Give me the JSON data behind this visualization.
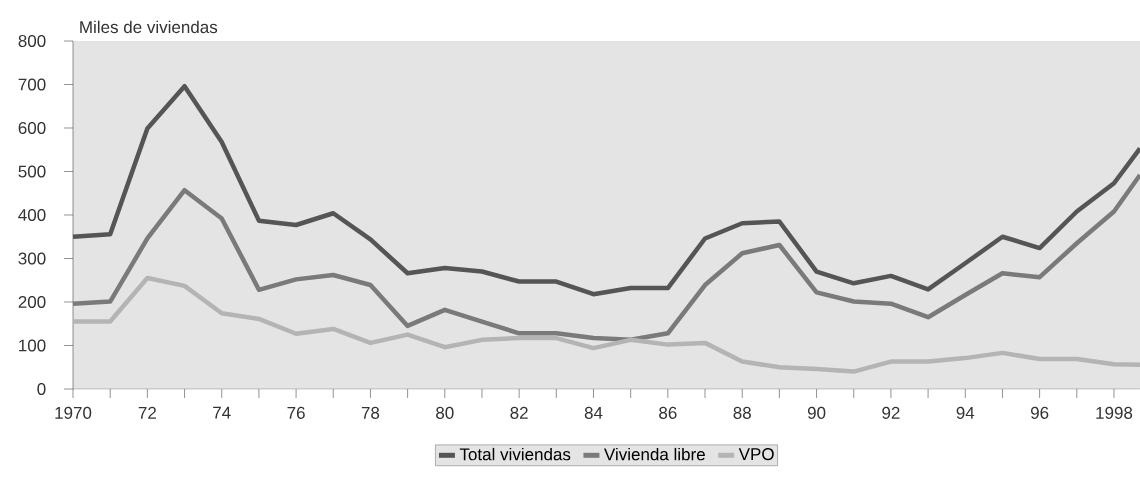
{
  "chart_data": {
    "type": "line",
    "ylabel": "Miles de viviendas",
    "x": [
      1970,
      1971,
      1972,
      1973,
      1974,
      1975,
      1976,
      1977,
      1978,
      1979,
      1980,
      1981,
      1982,
      1983,
      1984,
      1985,
      1986,
      1987,
      1988,
      1989,
      1990,
      1991,
      1992,
      1993,
      1994,
      1995,
      1996,
      1997,
      1998,
      1998.7
    ],
    "series": [
      {
        "name": "Total viviendas",
        "color": "#555555",
        "values": [
          350,
          356,
          599,
          696,
          568,
          387,
          377,
          404,
          344,
          266,
          278,
          270,
          247,
          247,
          218,
          232,
          232,
          346,
          381,
          385,
          270,
          243,
          260,
          229,
          289,
          350,
          324,
          408,
          473,
          553
        ]
      },
      {
        "name": "Vivienda libre",
        "color": "#7a7a7a",
        "values": [
          196,
          201,
          346,
          457,
          392,
          228,
          252,
          262,
          239,
          145,
          182,
          155,
          128,
          128,
          117,
          113,
          128,
          239,
          312,
          331,
          222,
          201,
          196,
          165,
          216,
          266,
          257,
          335,
          408,
          492
        ]
      },
      {
        "name": "VPO",
        "color": "#b4b4b4",
        "values": [
          155,
          155,
          255,
          237,
          174,
          161,
          127,
          138,
          106,
          125,
          96,
          113,
          117,
          117,
          94,
          113,
          102,
          106,
          63,
          50,
          46,
          40,
          63,
          63,
          71,
          83,
          69,
          69,
          57,
          56
        ]
      }
    ],
    "xlim": [
      1970,
      1998.7
    ],
    "xticks": [
      {
        "value": 1970,
        "label": "1970"
      },
      {
        "value": 1971,
        "label": null
      },
      {
        "value": 1972,
        "label": "72"
      },
      {
        "value": 1973,
        "label": null
      },
      {
        "value": 1974,
        "label": "74"
      },
      {
        "value": 1975,
        "label": null
      },
      {
        "value": 1976,
        "label": "76"
      },
      {
        "value": 1977,
        "label": null
      },
      {
        "value": 1978,
        "label": "78"
      },
      {
        "value": 1979,
        "label": null
      },
      {
        "value": 1980,
        "label": "80"
      },
      {
        "value": 1981,
        "label": null
      },
      {
        "value": 1982,
        "label": "82"
      },
      {
        "value": 1983,
        "label": null
      },
      {
        "value": 1984,
        "label": "84"
      },
      {
        "value": 1985,
        "label": null
      },
      {
        "value": 1986,
        "label": "86"
      },
      {
        "value": 1987,
        "label": null
      },
      {
        "value": 1988,
        "label": "88"
      },
      {
        "value": 1989,
        "label": null
      },
      {
        "value": 1990,
        "label": "90"
      },
      {
        "value": 1991,
        "label": null
      },
      {
        "value": 1992,
        "label": "92"
      },
      {
        "value": 1993,
        "label": null
      },
      {
        "value": 1994,
        "label": "94"
      },
      {
        "value": 1995,
        "label": null
      },
      {
        "value": 1996,
        "label": "96"
      },
      {
        "value": 1997,
        "label": null
      },
      {
        "value": 1998,
        "label": "1998"
      }
    ],
    "ylim": [
      0,
      800
    ],
    "yticks": [
      0,
      100,
      200,
      300,
      400,
      500,
      600,
      700,
      800
    ],
    "grid": false,
    "legend": "bottom",
    "marker": "none",
    "line_style": "solid"
  }
}
